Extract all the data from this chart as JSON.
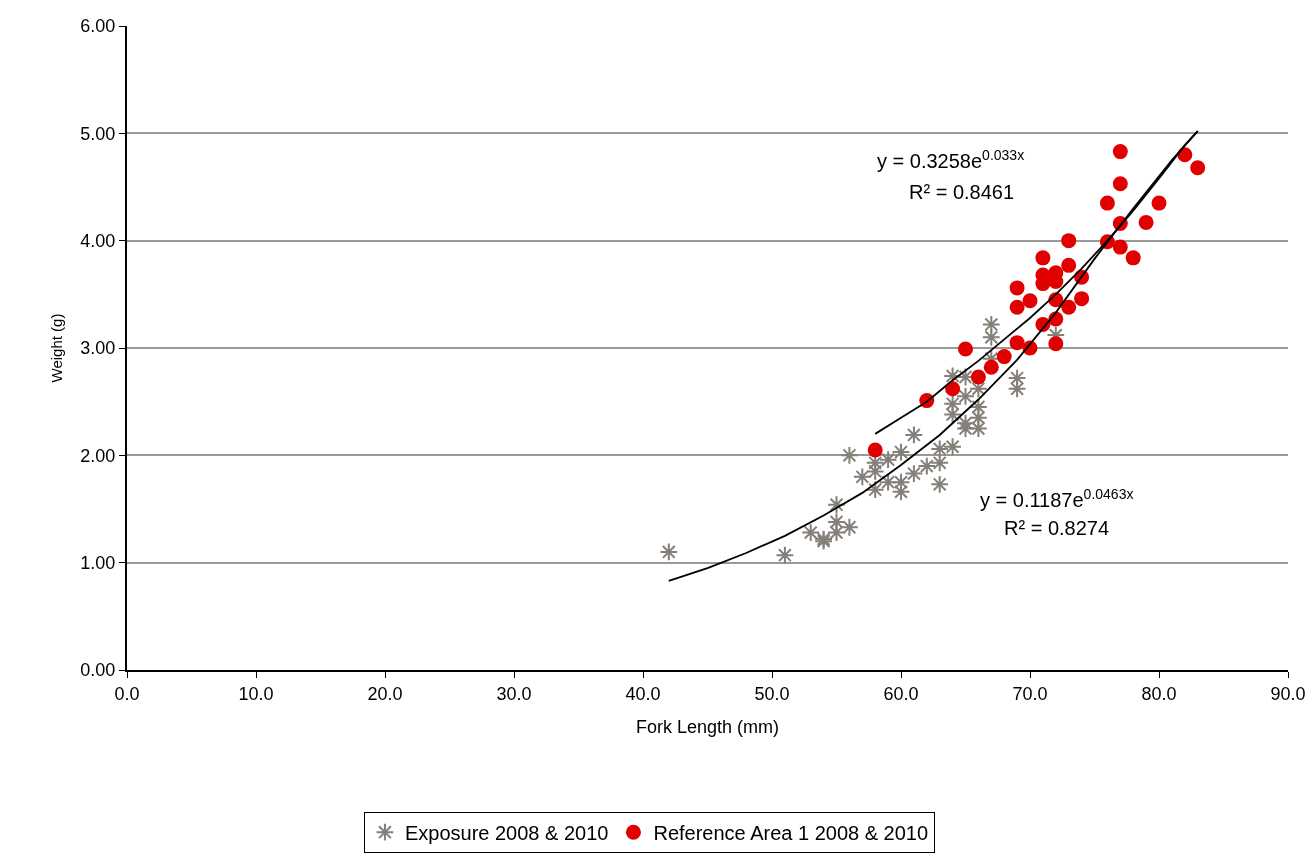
{
  "chart_data": {
    "type": "scatter",
    "xlabel": "Fork Length (mm)",
    "ylabel": "Weight (g)",
    "xlim": [
      0,
      90
    ],
    "xticks": [
      {
        "value": 0,
        "label": "0.0"
      },
      {
        "value": 10,
        "label": "10.0"
      },
      {
        "value": 20,
        "label": "20.0"
      },
      {
        "value": 30,
        "label": "30.0"
      },
      {
        "value": 40,
        "label": "40.0"
      },
      {
        "value": 50,
        "label": "50.0"
      },
      {
        "value": 60,
        "label": "60.0"
      },
      {
        "value": 70,
        "label": "70.0"
      },
      {
        "value": 80,
        "label": "80.0"
      },
      {
        "value": 90,
        "label": "90.0"
      }
    ],
    "ylim": [
      0,
      6
    ],
    "yticks": [
      {
        "value": 0,
        "label": "0.00"
      },
      {
        "value": 1,
        "label": "1.00"
      },
      {
        "value": 2,
        "label": "2.00"
      },
      {
        "value": 3,
        "label": "3.00"
      },
      {
        "value": 4,
        "label": "4.00"
      },
      {
        "value": 5,
        "label": "5.00"
      },
      {
        "value": 6,
        "label": "6.00"
      }
    ],
    "grid": "y",
    "legend": "bottom",
    "series": [
      {
        "name": "Exposure 2008 & 2010",
        "color": "#857f79",
        "marker": "cross",
        "x": [
          42,
          51,
          53,
          54,
          54,
          55,
          55,
          55,
          56,
          56,
          57,
          58,
          58,
          58,
          59,
          59,
          60,
          60,
          60,
          61,
          61,
          62,
          63,
          63,
          63,
          64,
          64,
          64,
          64,
          65,
          65,
          65,
          65,
          66,
          66,
          66,
          66,
          67,
          67,
          67,
          69,
          69,
          72
        ],
        "values": [
          1.1,
          1.07,
          1.28,
          1.2,
          1.22,
          1.28,
          1.38,
          1.54,
          1.33,
          2.0,
          1.8,
          1.68,
          1.85,
          1.93,
          1.75,
          1.96,
          1.66,
          1.75,
          2.03,
          1.83,
          2.19,
          1.9,
          1.73,
          1.93,
          2.06,
          2.08,
          2.38,
          2.48,
          2.74,
          2.25,
          2.3,
          2.55,
          2.73,
          2.25,
          2.35,
          2.45,
          2.62,
          2.9,
          3.1,
          3.22,
          2.62,
          2.72,
          3.12
        ]
      },
      {
        "name": "Reference Area 1 2008 & 2010",
        "color": "#e00000",
        "marker": "circle",
        "x": [
          58,
          62,
          64,
          65,
          66,
          67,
          68,
          69,
          69,
          69,
          70,
          70,
          71,
          71,
          71,
          71,
          72,
          72,
          72,
          72,
          72,
          73,
          73,
          73,
          74,
          74,
          76,
          76,
          77,
          77,
          77,
          77,
          78,
          79,
          80,
          82,
          83
        ],
        "values": [
          2.05,
          2.51,
          2.62,
          2.99,
          2.73,
          2.82,
          2.92,
          3.05,
          3.38,
          3.56,
          3.0,
          3.44,
          3.22,
          3.6,
          3.68,
          3.84,
          3.04,
          3.27,
          3.45,
          3.62,
          3.7,
          3.38,
          3.77,
          4.0,
          3.46,
          3.66,
          3.99,
          4.35,
          3.94,
          4.16,
          4.53,
          4.83,
          3.84,
          4.17,
          4.35,
          4.8,
          4.68
        ]
      },
      {
        "type": "line",
        "color": "#000000",
        "marker": "none",
        "x": [
          58,
          60,
          62,
          64,
          66,
          68,
          70,
          72,
          74,
          76,
          78,
          80,
          82,
          83
        ],
        "values": [
          2.2,
          2.35,
          2.5,
          2.7,
          2.88,
          3.08,
          3.28,
          3.5,
          3.74,
          4.0,
          4.28,
          4.58,
          4.89,
          5.02
        ]
      },
      {
        "type": "line",
        "color": "#000000",
        "marker": "none",
        "x": [
          42,
          45,
          48,
          51,
          54,
          57,
          60,
          63,
          66,
          69,
          72,
          75,
          78,
          81,
          83
        ],
        "values": [
          0.83,
          0.95,
          1.09,
          1.25,
          1.44,
          1.65,
          1.91,
          2.19,
          2.52,
          2.89,
          3.33,
          3.83,
          4.3,
          4.75,
          5.02
        ]
      }
    ],
    "annotations": [
      "y = 0.3258e$^{0.033x}$",
      "R² = 0.8461",
      "y = 0.1187e$^{0.0463x}$",
      "R² = 0.8274"
    ]
  }
}
